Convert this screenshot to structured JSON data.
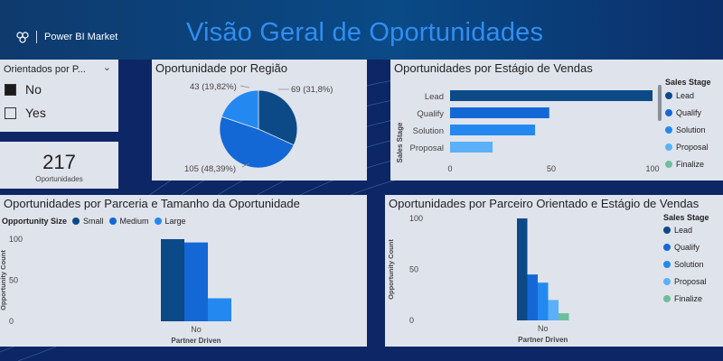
{
  "header": {
    "brand": "Power BI Market",
    "title": "Visão Geral de Oportunidades",
    "colors": {
      "bar": "#0b4079",
      "title": "#2f8ef2",
      "page_bg": "#0d2666"
    }
  },
  "slicer": {
    "title": "Orientados por P...",
    "options": [
      {
        "label": "No",
        "checked": true
      },
      {
        "label": "Yes",
        "checked": false
      }
    ]
  },
  "kpi": {
    "value": "217",
    "label": "Oportunidades"
  },
  "region_chart": {
    "title": "Oportunidade por Região",
    "chart_data": {
      "type": "pie",
      "slices": [
        {
          "value": 69,
          "label": "69 (31,8%)",
          "color": "#0c4a87"
        },
        {
          "value": 105,
          "label": "105 (48,39%)",
          "color": "#1468d6"
        },
        {
          "value": 43,
          "label": "43 (19,82%)",
          "color": "#2389f0"
        }
      ]
    }
  },
  "stage_chart": {
    "title": "Oportunidades por Estágio de Vendas",
    "chart_data": {
      "type": "bar",
      "orientation": "horizontal",
      "ylabel": "Sales Stage",
      "categories": [
        "Lead",
        "Qualify",
        "Solution",
        "Proposal"
      ],
      "values": [
        100,
        49,
        42,
        21
      ],
      "xlim": [
        0,
        100
      ],
      "ticks": [
        "0",
        "50",
        "100"
      ],
      "colors": [
        "#0c4a87",
        "#1468d6",
        "#2389f0",
        "#5bb0f7"
      ]
    },
    "legend": {
      "title": "Sales Stage",
      "items": [
        {
          "label": "Lead",
          "color": "#0c4a87"
        },
        {
          "label": "Qualify",
          "color": "#1468d6"
        },
        {
          "label": "Solution",
          "color": "#2389f0"
        },
        {
          "label": "Proposal",
          "color": "#5bb0f7"
        },
        {
          "label": "Finalize",
          "color": "#6dbf9a"
        }
      ]
    }
  },
  "partnership_chart": {
    "title": "Oportunidades por Parceria e Tamanho da Oportunidade",
    "legend": {
      "title": "Opportunity Size",
      "items": [
        {
          "label": "Small",
          "color": "#0c4a87"
        },
        {
          "label": "Medium",
          "color": "#1468d6"
        },
        {
          "label": "Large",
          "color": "#2389f0"
        }
      ]
    },
    "chart_data": {
      "type": "bar",
      "categories": [
        "No"
      ],
      "series": [
        {
          "name": "Small",
          "values": [
            100
          ],
          "color": "#0c4a87"
        },
        {
          "name": "Medium",
          "values": [
            96
          ],
          "color": "#1468d6"
        },
        {
          "name": "Large",
          "values": [
            28
          ],
          "color": "#2389f0"
        }
      ],
      "xlabel": "Partner Driven",
      "ylabel": "Opportunity Count",
      "ylim": [
        0,
        100
      ],
      "yticks": [
        "0",
        "50",
        "100"
      ]
    }
  },
  "partner_stage_chart": {
    "title": "Oportunidades por Parceiro Orientado e Estágio de Vendas",
    "legend": {
      "title": "Sales Stage",
      "items": [
        {
          "label": "Lead",
          "color": "#0c4a87"
        },
        {
          "label": "Qualify",
          "color": "#1468d6"
        },
        {
          "label": "Solution",
          "color": "#2389f0"
        },
        {
          "label": "Proposal",
          "color": "#5bb0f7"
        },
        {
          "label": "Finalize",
          "color": "#6dbf9a"
        }
      ]
    },
    "chart_data": {
      "type": "bar",
      "categories": [
        "No"
      ],
      "series": [
        {
          "name": "Lead",
          "values": [
            100
          ],
          "color": "#0c4a87"
        },
        {
          "name": "Qualify",
          "values": [
            45
          ],
          "color": "#1468d6"
        },
        {
          "name": "Solution",
          "values": [
            37
          ],
          "color": "#2389f0"
        },
        {
          "name": "Proposal",
          "values": [
            20
          ],
          "color": "#5bb0f7"
        },
        {
          "name": "Finalize",
          "values": [
            7
          ],
          "color": "#6dbf9a"
        }
      ],
      "xlabel": "Partner Driven",
      "ylabel": "Opportunity Count",
      "ylim": [
        0,
        100
      ],
      "yticks": [
        "0",
        "50",
        "100"
      ]
    }
  }
}
